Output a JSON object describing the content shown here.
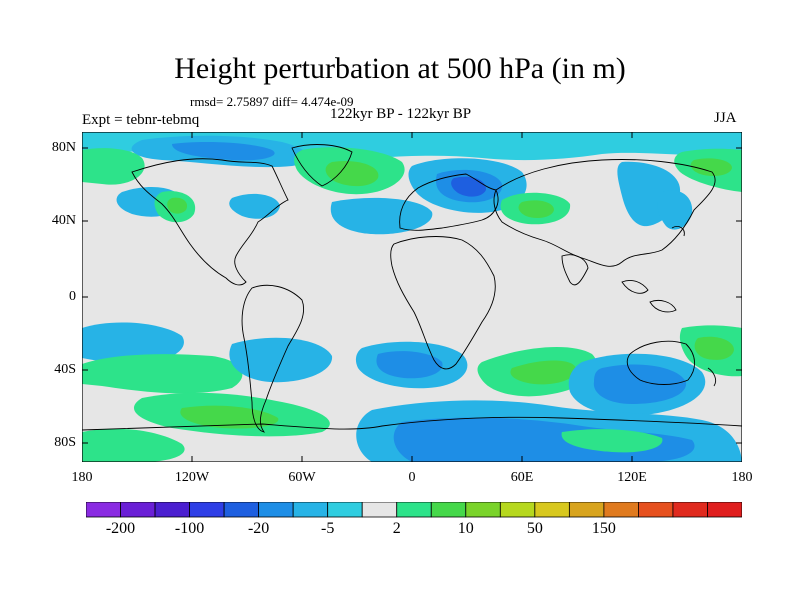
{
  "title": "Height perturbation at 500 hPa (in m)",
  "stats": "rmsd= 2.75897 diff= 4.474e-09",
  "left_label": "Expt = tebnr-tebmq",
  "center_label": "122kyr BP - 122kyr BP",
  "right_label": "JJA",
  "map": {
    "land_color": "#e6e6e6",
    "lat_labels": [
      "80N",
      "40N",
      "0",
      "40S",
      "80S"
    ],
    "lat_values": [
      80,
      40,
      0,
      -40,
      -80
    ],
    "lon_labels": [
      "180",
      "120W",
      "60W",
      "0",
      "60E",
      "120E",
      "180"
    ],
    "lon_values": [
      -180,
      -120,
      -60,
      0,
      60,
      120,
      180
    ]
  },
  "colorbar": {
    "colors": [
      "#8a2be2",
      "#6a1fd6",
      "#4b1fd0",
      "#2e3ee6",
      "#1e5fe0",
      "#1e8ee6",
      "#27b3e6",
      "#2fcde0",
      "#e6e6e6",
      "#2de38a",
      "#45d84a",
      "#7ad32a",
      "#b6d81e",
      "#d8c81e",
      "#d8a41e",
      "#e07a1e",
      "#e6501e",
      "#e02a1e",
      "#e01e1e"
    ],
    "labels": [
      "-200",
      "-100",
      "-20",
      "-5",
      "2",
      "10",
      "50",
      "150"
    ],
    "label_after_box": [
      1,
      3,
      5,
      7,
      9,
      11,
      13,
      15
    ]
  }
}
